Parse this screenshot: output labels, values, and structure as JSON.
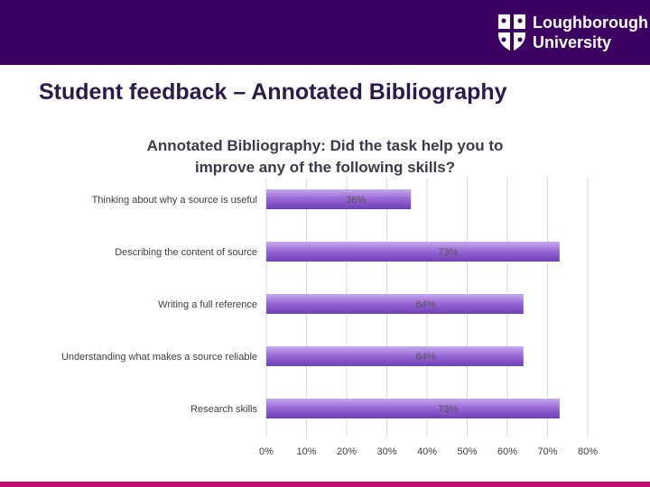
{
  "header": {
    "logo_line1": "Loughborough",
    "logo_line2": "University"
  },
  "slide": {
    "title": "Student feedback – Annotated Bibliography"
  },
  "chart_data": {
    "type": "bar",
    "orientation": "horizontal",
    "title_line1": "Annotated Bibliography: Did the task help you to",
    "title_line2": "improve any of the following skills?",
    "categories": [
      "Thinking about why a source is useful",
      "Describing the content of source",
      "Writing a full reference",
      "Understanding what makes a source reliable",
      "Research skills"
    ],
    "values": [
      36,
      73,
      64,
      64,
      73
    ],
    "data_labels": [
      "36%",
      "73%",
      "64%",
      "64%",
      "73%"
    ],
    "xlim": [
      0,
      80
    ],
    "x_ticks": [
      "0%",
      "10%",
      "20%",
      "30%",
      "40%",
      "50%",
      "60%",
      "70%",
      "80%"
    ],
    "grid": "vertical",
    "bar_color": "#8d5fc8"
  }
}
